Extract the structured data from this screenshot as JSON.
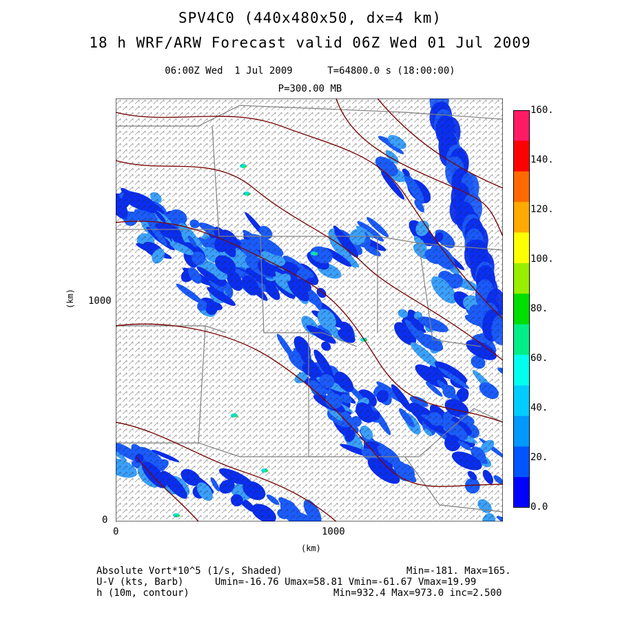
{
  "header": {
    "title_line1": "SPV4C0 (440x480x50, dx=4 km)",
    "title_line2": "18 h WRF/ARW Forecast valid 06Z Wed 01 Jul 2009",
    "valid_time": "06:00Z Wed  1 Jul 2009      T=64800.0 s (18:00:00)",
    "pressure_level": "P=300.00 MB"
  },
  "axes": {
    "y_label": "(km)",
    "x_label": "(km)",
    "x_ticks": [
      "0",
      "1000"
    ],
    "y_ticks": [
      "0",
      "1000"
    ]
  },
  "colorbar": {
    "labels": [
      "160.",
      "140.",
      "120.",
      "100.",
      "80.",
      "60.",
      "40.",
      "20.",
      "0.0"
    ],
    "colors": [
      "#ff1a66",
      "#ff0000",
      "#ff6a00",
      "#ffaa00",
      "#ffff00",
      "#99ee00",
      "#00dd00",
      "#00ee88",
      "#00ffee",
      "#00ccff",
      "#0099ff",
      "#0055ff",
      "#0000ff"
    ]
  },
  "map_colors": {
    "field_dark": "#0a2ef0",
    "field_mid": "#1a5cff",
    "field_light": "#3aa0ff",
    "field_cyan": "#00e6d0",
    "field_green": "#33dd33",
    "contour": "#7a0a0a",
    "border": "#808080",
    "barb": "#222222"
  },
  "footer": {
    "row1_left": "Absolute Vort*10^5 (1/s, Shaded)",
    "row1_right": "Min=-181. Max=165.",
    "row2_left": "U-V (kts, Barb)",
    "row2_right": "Umin=-16.76 Umax=58.81 Vmin=-61.67 Vmax=19.99",
    "row3_left": "h (10m, contour)",
    "row3_right": "Min=932.4 Max=973.0 inc=2.500"
  }
}
